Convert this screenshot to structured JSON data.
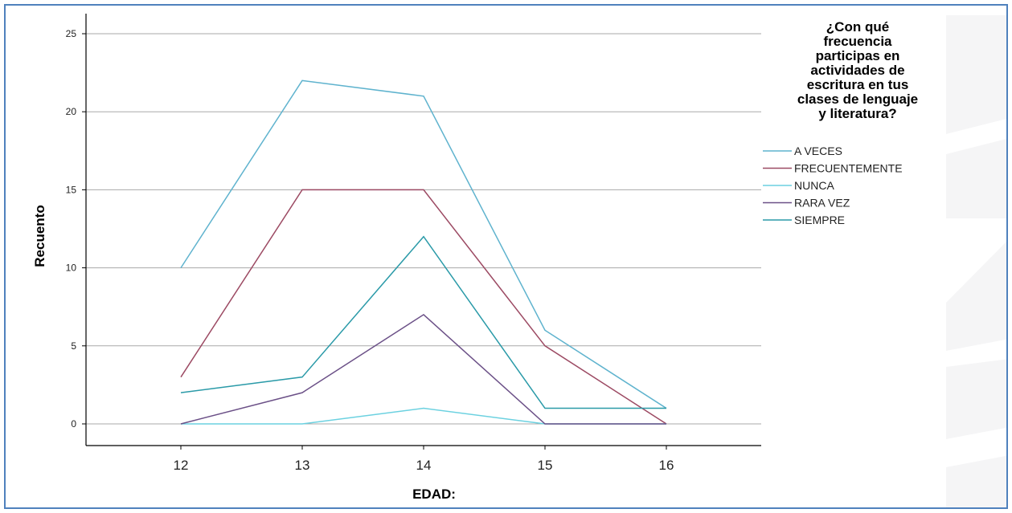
{
  "chart_data": {
    "type": "line",
    "xlabel": "EDAD:",
    "ylabel": "Recuento",
    "categories": [
      "12",
      "13",
      "14",
      "15",
      "16"
    ],
    "ylim": [
      0,
      26
    ],
    "yticks": [
      0,
      5,
      10,
      15,
      20,
      25
    ],
    "grid": true,
    "legend_position": "right",
    "legend_title": "¿Con qué\nfrecuencia\nparticipas en\nactividades de\nescritura en tus\nclases de lenguaje\ny literatura?",
    "series": [
      {
        "name": "A VECES",
        "color": "#5fb3ce",
        "values": [
          10,
          22,
          21,
          6,
          1
        ]
      },
      {
        "name": "FRECUENTEMENTE",
        "color": "#9c4a63",
        "values": [
          3,
          15,
          15,
          5,
          0
        ]
      },
      {
        "name": "NUNCA",
        "color": "#6bd1e0",
        "values": [
          0,
          0,
          1,
          0,
          0
        ]
      },
      {
        "name": "RARA VEZ",
        "color": "#6b5087",
        "values": [
          0,
          2,
          7,
          0,
          0
        ]
      },
      {
        "name": "SIEMPRE",
        "color": "#2a9aa8",
        "values": [
          2,
          3,
          12,
          1,
          1
        ]
      }
    ]
  }
}
